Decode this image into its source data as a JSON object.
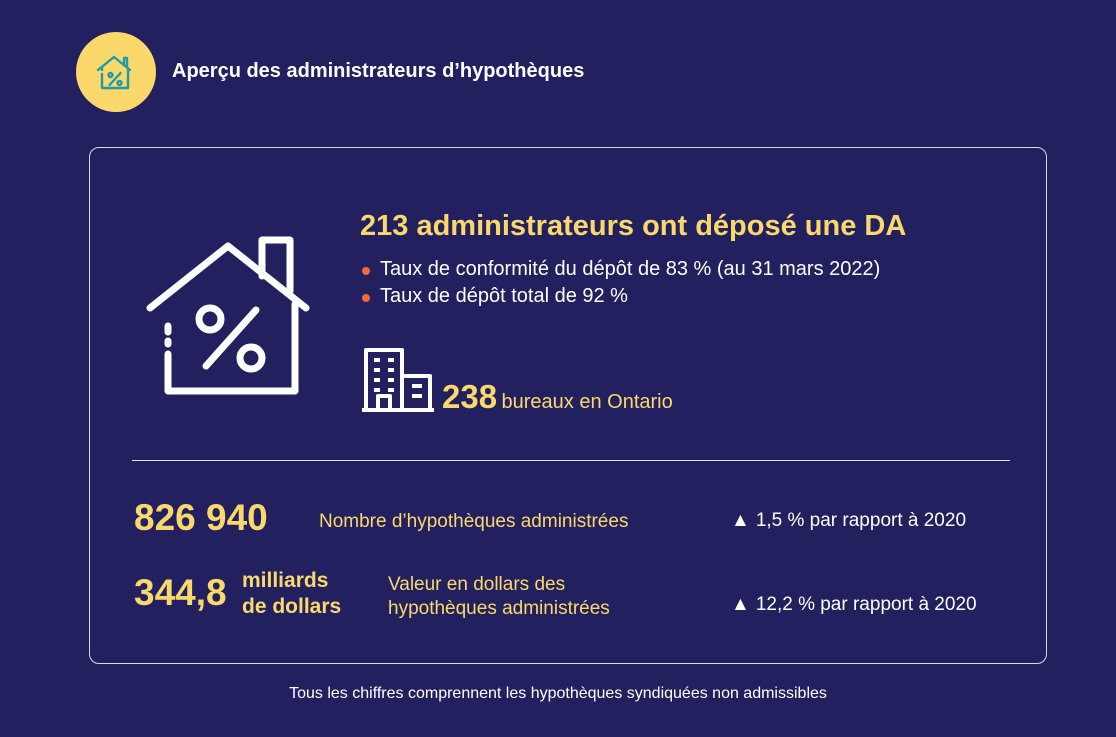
{
  "header": {
    "title": "Aperçu des administrateurs d’hypothèques",
    "badge_icon": "house-percent-icon"
  },
  "filings": {
    "headline": "213 administrateurs ont déposé une DA",
    "bullets": [
      "Taux de conformité du dépôt de 83 % (au 31 mars 2022)",
      "Taux de dépôt total de 92 %"
    ],
    "house_icon": "house-percent-icon"
  },
  "offices": {
    "number": "238",
    "label": "bureaux en Ontario",
    "icon": "office-building-icon"
  },
  "stats": [
    {
      "value": "826 940",
      "label": "Nombre d’hypothèques administrées",
      "change": "1,5 % par rapport à 2020"
    },
    {
      "value": "344,8",
      "unit_line1": "milliards",
      "unit_line2": "de dollars",
      "label_line1": "Valeur en dollars des",
      "label_line2": "hypothèques administrées",
      "change": "12,2 % par rapport à 2020"
    }
  ],
  "change_symbol": "▲",
  "footnote": "Tous les chiffres comprennent les hypothèques syndiquées non admissibles",
  "colors": {
    "background": "#232060",
    "accent_yellow": "#fbd86b",
    "bullet_orange": "#f26a36",
    "badge_icon": "#1f9aa8"
  }
}
